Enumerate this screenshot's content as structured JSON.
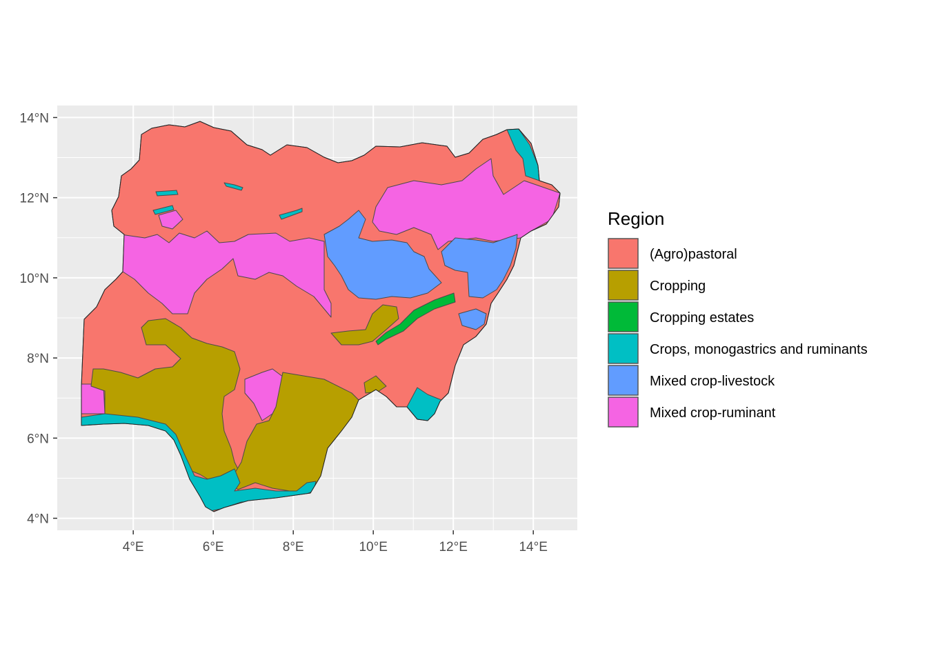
{
  "chart_data": {
    "type": "map",
    "country": "Nigeria",
    "legend": {
      "title": "Region",
      "placement": "right",
      "entries": [
        {
          "key": "agro_pastoral",
          "label": "(Agro)pastoral",
          "color": "#F8766D"
        },
        {
          "key": "cropping",
          "label": "Cropping",
          "color": "#B79F00"
        },
        {
          "key": "cropping_estates",
          "label": "Cropping estates",
          "color": "#00BA38"
        },
        {
          "key": "crops_mono",
          "label": "Crops, monogastrics and ruminants",
          "color": "#00BFC4"
        },
        {
          "key": "mixed_livestock",
          "label": "Mixed crop-livestock",
          "color": "#619CFF"
        },
        {
          "key": "mixed_ruminant",
          "label": "Mixed crop-ruminant",
          "color": "#F564E3"
        }
      ]
    },
    "x_axis": {
      "ticks": [
        4,
        6,
        8,
        10,
        12,
        14
      ],
      "tick_labels": [
        "4°E",
        "6°E",
        "8°E",
        "10°E",
        "12°E",
        "14°E"
      ],
      "range": [
        2.1,
        15.1
      ]
    },
    "y_axis": {
      "ticks": [
        4,
        6,
        8,
        10,
        12,
        14
      ],
      "tick_labels": [
        "4°N",
        "6°N",
        "8°N",
        "10°N",
        "12°N",
        "14°N"
      ],
      "range": [
        3.7,
        14.3
      ]
    },
    "grid": true,
    "panel_background": "#EBEBEB"
  }
}
